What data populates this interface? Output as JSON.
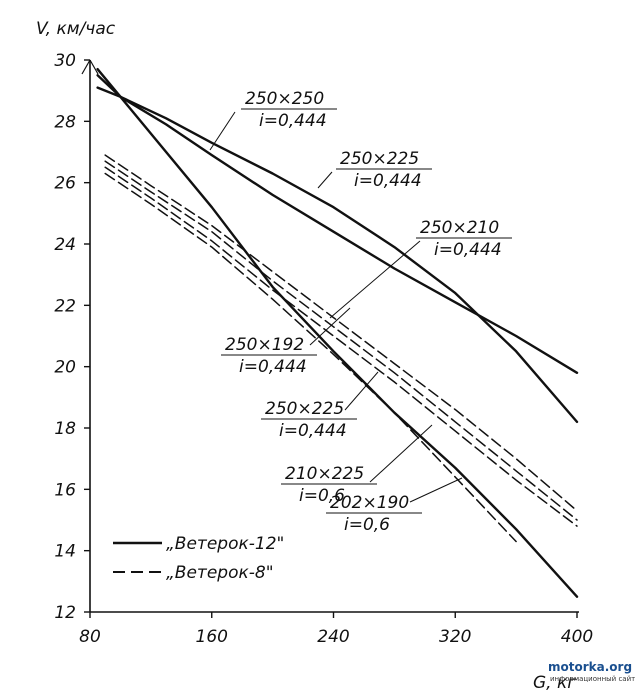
{
  "chart_data": {
    "type": "line",
    "ylabel": "V, км/час",
    "xlabel": "G, кг",
    "xlim": [
      80,
      400
    ],
    "ylim": [
      12,
      30
    ],
    "x_ticks": [
      80,
      160,
      240,
      320,
      400
    ],
    "y_ticks": [
      12,
      14,
      16,
      18,
      20,
      22,
      24,
      26,
      28,
      30
    ],
    "grid": false,
    "legend": {
      "position": "bottom-left",
      "entries": [
        {
          "label": "„Ветерок-12\"",
          "style": "solid"
        },
        {
          "label": "„Ветерок-8\"",
          "style": "dashed"
        }
      ]
    },
    "series": [
      {
        "motor": "Ветерок-12",
        "style": "solid",
        "annotation": [
          "250×250",
          "i=0,444"
        ],
        "x": [
          85,
          100,
          130,
          160,
          200,
          240,
          280,
          320,
          360,
          400
        ],
        "y": [
          29.5,
          28.8,
          28.1,
          27.3,
          26.3,
          25.2,
          23.9,
          22.4,
          20.5,
          18.2
        ]
      },
      {
        "motor": "Ветерок-12",
        "style": "solid",
        "annotation": [
          "250×225",
          "i=0,444"
        ],
        "x": [
          85,
          100,
          130,
          160,
          200,
          240,
          280,
          320,
          360,
          400
        ],
        "y": [
          29.1,
          28.8,
          27.9,
          26.9,
          25.6,
          24.4,
          23.2,
          22.1,
          21.0,
          19.8
        ]
      },
      {
        "motor": "Ветерок-12",
        "style": "solid",
        "annotation": [
          "202×190",
          "i=0,6"
        ],
        "x": [
          85,
          120,
          160,
          200,
          240,
          280,
          320,
          360,
          400
        ],
        "y": [
          29.7,
          27.6,
          25.2,
          22.6,
          20.5,
          18.5,
          16.7,
          14.7,
          12.5
        ]
      },
      {
        "motor": "Ветерок-8",
        "style": "dashed",
        "annotation": [
          "250×210",
          "i=0,444"
        ],
        "x": [
          90,
          120,
          160,
          200,
          240,
          280,
          320,
          360,
          400
        ],
        "y": [
          26.9,
          25.9,
          24.6,
          23.1,
          21.6,
          20.1,
          18.6,
          17.0,
          15.3
        ]
      },
      {
        "motor": "Ветерок-8",
        "style": "dashed",
        "annotation": [
          "250×192",
          "i=0,444"
        ],
        "x": [
          90,
          120,
          160,
          200,
          240,
          280,
          320,
          360,
          400
        ],
        "y": [
          26.7,
          25.7,
          24.4,
          22.8,
          21.3,
          19.8,
          18.2,
          16.6,
          15.0
        ]
      },
      {
        "motor": "Ветерок-8",
        "style": "dashed",
        "annotation": [
          "250×225",
          "i=0,444"
        ],
        "x": [
          90,
          120,
          160,
          200,
          240,
          280,
          320,
          360,
          400
        ],
        "y": [
          26.5,
          25.5,
          24.1,
          22.5,
          21.0,
          19.5,
          17.9,
          16.3,
          14.8
        ]
      },
      {
        "motor": "Ветерок-8",
        "style": "dashed",
        "annotation": [
          "210×225",
          "i=0,6"
        ],
        "x": [
          90,
          120,
          160,
          200,
          240,
          280,
          320,
          360
        ],
        "y": [
          26.3,
          25.3,
          23.9,
          22.2,
          20.4,
          18.5,
          16.4,
          14.3
        ]
      }
    ]
  },
  "watermark": {
    "site": "motorka.org",
    "tagline": "информационный сайт"
  }
}
